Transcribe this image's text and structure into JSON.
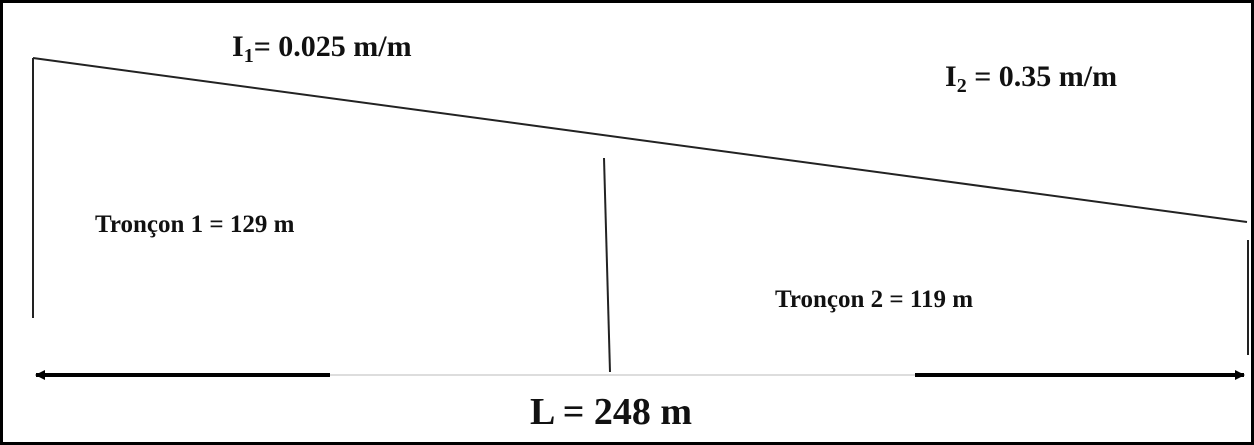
{
  "slopes": [
    {
      "symbol": "I",
      "index": "1",
      "text": "= 0.025 m/m"
    },
    {
      "symbol": "I",
      "index": "2",
      "text": " = 0.35 m/m"
    }
  ],
  "sections": [
    {
      "label": "Tronçon 1 = 129 m"
    },
    {
      "label": "Tronçon 2 = 119 m"
    }
  ],
  "total": {
    "label": "L = 248 m"
  }
}
